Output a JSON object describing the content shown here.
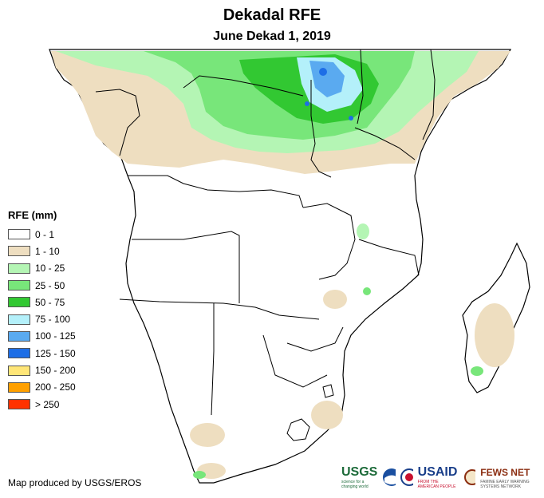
{
  "title": "Dekadal RFE",
  "subtitle": "June Dekad 1, 2019",
  "legend": {
    "title": "RFE (mm)",
    "items": [
      {
        "label": "0 - 1",
        "color": "#ffffff"
      },
      {
        "label": "1 - 10",
        "color": "#eedec0"
      },
      {
        "label": "10 - 25",
        "color": "#b4f5b4"
      },
      {
        "label": "25 - 50",
        "color": "#78e67a"
      },
      {
        "label": "50 - 75",
        "color": "#32c832"
      },
      {
        "label": "75 - 100",
        "color": "#b4f0fa"
      },
      {
        "label": "100 - 125",
        "color": "#5aaaf0"
      },
      {
        "label": "125 - 150",
        "color": "#1e6ee6"
      },
      {
        "label": "150 - 200",
        "color": "#ffe678"
      },
      {
        "label": "200 - 250",
        "color": "#ffa000"
      },
      {
        "label": "> 250",
        "color": "#ff3200"
      }
    ]
  },
  "credit": "Map produced by USGS/EROS",
  "logos": {
    "usgs": "USGS",
    "usgs_tagline": "science for a changing world",
    "usaid": "USAID",
    "usaid_tagline": "FROM THE AMERICAN PEOPLE",
    "fews": "FEWS NET",
    "fews_tagline": "FAMINE EARLY WARNING SYSTEMS NETWORK"
  }
}
